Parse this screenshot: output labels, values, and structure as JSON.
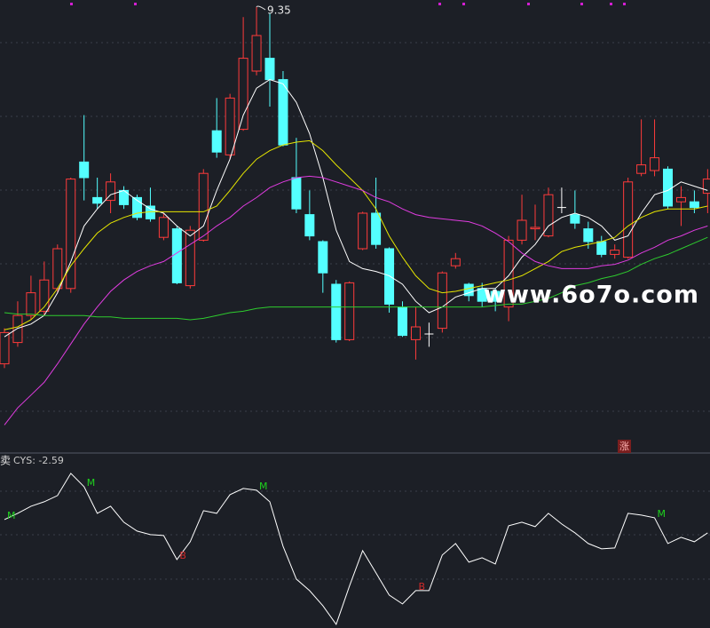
{
  "chart_data": [
    {
      "type": "candlestick",
      "ylim": [
        6.3,
        9.4
      ],
      "up_color": "#ff3b3b",
      "down_color": "#54ffff",
      "flat_color": "#ffffff",
      "open": [
        6.84,
        6.99,
        7.18,
        7.21,
        7.37,
        7.37,
        8.26,
        8.01,
        7.99,
        8.06,
        8.01,
        7.95,
        7.73,
        7.79,
        7.39,
        7.71,
        8.48,
        8.31,
        8.49,
        8.9,
        8.99,
        8.84,
        8.15,
        7.89,
        7.7,
        7.4,
        7.01,
        7.65,
        7.9,
        7.65,
        7.24,
        7.01,
        7.05,
        7.09,
        7.53,
        7.4,
        7.37,
        7.35,
        7.24,
        7.71,
        7.79,
        7.74,
        7.94,
        7.89,
        7.79,
        7.7,
        7.61,
        7.59,
        8.18,
        8.2,
        8.21,
        7.98,
        7.98,
        8.04
      ],
      "high": [
        7.09,
        7.28,
        7.46,
        7.56,
        7.68,
        8.15,
        8.59,
        8.15,
        8.18,
        8.09,
        8.03,
        8.08,
        7.9,
        7.81,
        7.81,
        8.21,
        8.71,
        8.74,
        9.28,
        9.35,
        9.31,
        8.9,
        8.43,
        8.06,
        7.71,
        7.43,
        7.42,
        7.91,
        8.15,
        7.66,
        7.28,
        7.24,
        7.13,
        7.49,
        7.62,
        7.41,
        7.41,
        7.37,
        7.74,
        8.03,
        7.96,
        8.08,
        8.08,
        8.06,
        7.84,
        7.74,
        7.68,
        8.15,
        8.56,
        8.56,
        8.23,
        8.09,
        8.06,
        8.21
      ],
      "low": [
        6.81,
        6.96,
        7.15,
        7.18,
        7.34,
        7.34,
        7.99,
        7.93,
        7.9,
        7.93,
        7.85,
        7.84,
        7.71,
        7.4,
        7.37,
        7.7,
        8.29,
        8.28,
        8.48,
        8.87,
        8.65,
        8.37,
        7.9,
        7.71,
        7.34,
        6.99,
        7.0,
        7.64,
        7.65,
        7.2,
        7.03,
        6.87,
        6.96,
        7.06,
        7.51,
        7.28,
        7.24,
        7.21,
        7.14,
        7.68,
        7.71,
        7.73,
        7.9,
        7.79,
        7.65,
        7.59,
        7.58,
        7.58,
        8.16,
        8.16,
        7.93,
        7.81,
        7.9,
        7.9
      ],
      "close": [
        7.06,
        7.18,
        7.34,
        7.43,
        7.65,
        8.14,
        8.15,
        7.97,
        8.12,
        7.96,
        7.87,
        7.86,
        7.87,
        7.41,
        7.78,
        8.18,
        8.33,
        8.71,
        8.99,
        9.15,
        8.84,
        8.38,
        7.93,
        7.74,
        7.48,
        7.01,
        7.41,
        7.9,
        7.68,
        7.26,
        7.04,
        7.1,
        7.05,
        7.48,
        7.58,
        7.32,
        7.28,
        7.28,
        7.71,
        7.85,
        7.8,
        8.03,
        7.94,
        7.83,
        7.7,
        7.61,
        7.64,
        8.12,
        8.24,
        8.29,
        7.95,
        8.01,
        7.94,
        8.14
      ],
      "overlays": [
        {
          "color": "#ffffff",
          "values": [
            7.03,
            7.09,
            7.12,
            7.18,
            7.34,
            7.56,
            7.81,
            7.93,
            8.03,
            8.06,
            7.99,
            7.93,
            7.9,
            7.81,
            7.74,
            7.81,
            8.06,
            8.28,
            8.59,
            8.78,
            8.84,
            8.81,
            8.68,
            8.46,
            8.15,
            7.78,
            7.56,
            7.51,
            7.49,
            7.46,
            7.4,
            7.28,
            7.2,
            7.24,
            7.31,
            7.34,
            7.37,
            7.37,
            7.46,
            7.59,
            7.68,
            7.81,
            7.87,
            7.9,
            7.87,
            7.81,
            7.71,
            7.74,
            7.9,
            8.03,
            8.06,
            8.12,
            8.09,
            8.06
          ]
        },
        {
          "color": "#e6e600",
          "values": [
            7.08,
            7.1,
            7.15,
            7.24,
            7.37,
            7.53,
            7.65,
            7.76,
            7.83,
            7.87,
            7.9,
            7.91,
            7.91,
            7.91,
            7.91,
            7.91,
            7.95,
            8.06,
            8.18,
            8.28,
            8.34,
            8.38,
            8.4,
            8.41,
            8.34,
            8.24,
            8.15,
            8.06,
            7.93,
            7.74,
            7.59,
            7.46,
            7.37,
            7.34,
            7.35,
            7.37,
            7.39,
            7.41,
            7.43,
            7.46,
            7.51,
            7.56,
            7.63,
            7.66,
            7.68,
            7.7,
            7.73,
            7.81,
            7.87,
            7.91,
            7.93,
            7.93,
            7.93,
            7.95
          ]
        },
        {
          "color": "#e03ce0",
          "values": [
            6.41,
            6.53,
            6.62,
            6.71,
            6.84,
            6.98,
            7.12,
            7.24,
            7.35,
            7.43,
            7.49,
            7.53,
            7.56,
            7.62,
            7.68,
            7.74,
            7.81,
            7.87,
            7.95,
            8.01,
            8.08,
            8.12,
            8.15,
            8.16,
            8.15,
            8.12,
            8.09,
            8.06,
            8.01,
            7.98,
            7.93,
            7.89,
            7.87,
            7.86,
            7.85,
            7.84,
            7.81,
            7.76,
            7.7,
            7.62,
            7.56,
            7.53,
            7.51,
            7.51,
            7.51,
            7.53,
            7.54,
            7.57,
            7.62,
            7.66,
            7.71,
            7.74,
            7.78,
            7.81
          ]
        },
        {
          "color": "#2ecc2e",
          "values": [
            7.2,
            7.19,
            7.19,
            7.18,
            7.18,
            7.18,
            7.18,
            7.17,
            7.17,
            7.16,
            7.16,
            7.16,
            7.16,
            7.16,
            7.15,
            7.16,
            7.18,
            7.2,
            7.21,
            7.23,
            7.24,
            7.24,
            7.24,
            7.24,
            7.24,
            7.24,
            7.24,
            7.24,
            7.24,
            7.24,
            7.24,
            7.24,
            7.24,
            7.24,
            7.24,
            7.24,
            7.24,
            7.25,
            7.26,
            7.26,
            7.28,
            7.3,
            7.34,
            7.39,
            7.41,
            7.44,
            7.46,
            7.49,
            7.54,
            7.58,
            7.61,
            7.65,
            7.69,
            7.73
          ]
        }
      ],
      "max_high": 9.35,
      "max_index": 19,
      "watermark": "www.6o7o.com",
      "badge": "涨"
    },
    {
      "type": "line",
      "ylim": [
        -13.3,
        6.2
      ],
      "color": "#ffffff",
      "prefix": "卖",
      "label": "CYS: -2.59",
      "values": [
        -1.09,
        -0.39,
        0.41,
        0.91,
        1.61,
        4.11,
        2.61,
        -0.39,
        0.41,
        -1.39,
        -2.39,
        -2.79,
        -2.89,
        -5.59,
        -3.59,
        -0.09,
        -0.39,
        1.71,
        2.41,
        2.21,
        0.91,
        -4.09,
        -7.79,
        -9.09,
        -10.79,
        -12.89,
        -8.59,
        -4.59,
        -7.09,
        -9.59,
        -10.59,
        -9.09,
        -9.09,
        -5.09,
        -3.79,
        -5.89,
        -5.39,
        -6.09,
        -1.79,
        -1.39,
        -1.89,
        -0.39,
        -1.59,
        -2.59,
        -3.79,
        -4.39,
        -4.29,
        -0.39,
        -0.59,
        -0.89,
        -3.79,
        -3.09,
        -3.59,
        -2.59
      ],
      "signals": [
        {
          "index": 0,
          "label": "M",
          "color": "#1ed21e"
        },
        {
          "index": 6,
          "label": "M",
          "color": "#1ed21e"
        },
        {
          "index": 13,
          "label": "B",
          "color": "#d22a2a"
        },
        {
          "index": 19,
          "label": "M",
          "color": "#1ed21e"
        },
        {
          "index": 31,
          "label": "B",
          "color": "#d22a2a"
        },
        {
          "index": 49,
          "label": "M",
          "color": "#1ed21e"
        }
      ]
    }
  ]
}
